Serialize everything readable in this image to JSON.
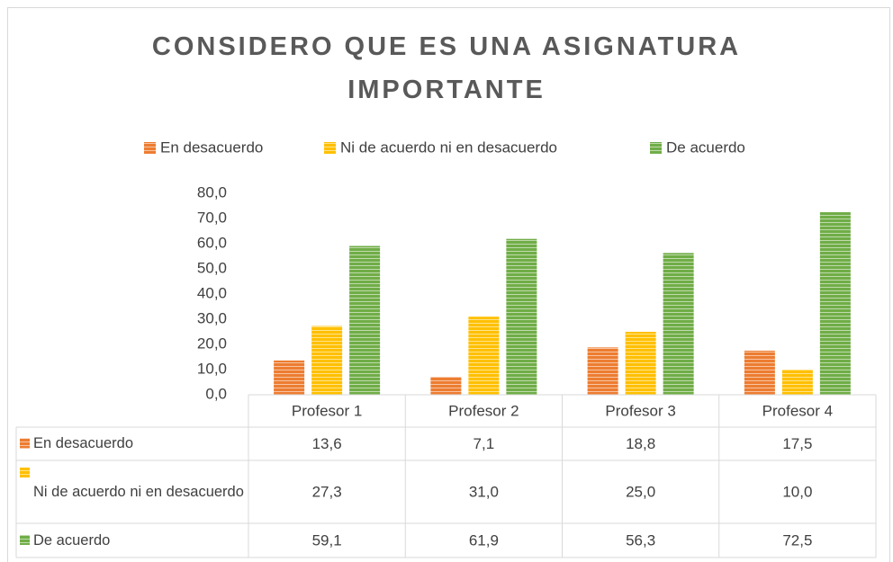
{
  "chart_data": {
    "type": "bar",
    "title": "CONSIDERO QUE ES UNA ASIGNATURA IMPORTANTE",
    "categories": [
      "Profesor 1",
      "Profesor 2",
      "Profesor 3",
      "Profesor 4"
    ],
    "series": [
      {
        "name": "En desacuerdo",
        "color": "#ed7d31",
        "values": [
          13.6,
          7.1,
          18.8,
          17.5
        ],
        "value_labels": [
          "13,6",
          "7,1",
          "18,8",
          "17,5"
        ]
      },
      {
        "name": "Ni de acuerdo ni en desacuerdo",
        "color": "#ffc000",
        "values": [
          27.3,
          31.0,
          25.0,
          10.0
        ],
        "value_labels": [
          "27,3",
          "31,0",
          "25,0",
          "10,0"
        ]
      },
      {
        "name": "De acuerdo",
        "color": "#70ad47",
        "values": [
          59.1,
          61.9,
          56.3,
          72.5
        ],
        "value_labels": [
          "59,1",
          "61,9",
          "56,3",
          "72,5"
        ]
      }
    ],
    "ylim": [
      0,
      80
    ],
    "yticks": [
      {
        "value": 0,
        "label": "0,0"
      },
      {
        "value": 10,
        "label": "10,0"
      },
      {
        "value": 20,
        "label": "20,0"
      },
      {
        "value": 30,
        "label": "30,0"
      },
      {
        "value": 40,
        "label": "40,0"
      },
      {
        "value": 50,
        "label": "50,0"
      },
      {
        "value": 60,
        "label": "60,0"
      },
      {
        "value": 70,
        "label": "70,0"
      },
      {
        "value": 80,
        "label": "80,0"
      }
    ],
    "legend": "top",
    "data_table": true
  }
}
